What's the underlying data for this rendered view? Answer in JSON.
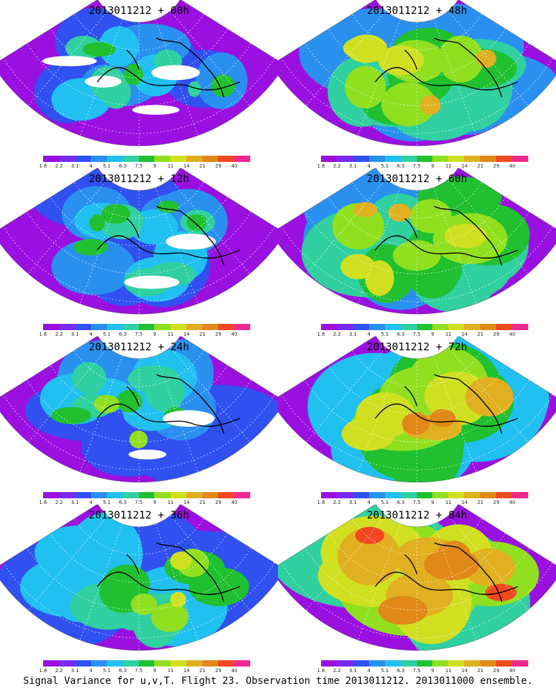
{
  "panels": [
    {
      "title": "2013011212 + 00h",
      "lead_hours": 0,
      "intensity": 0.2
    },
    {
      "title": "2013011212 + 48h",
      "lead_hours": 48,
      "intensity": 0.62
    },
    {
      "title": "2013011212 + 12h",
      "lead_hours": 12,
      "intensity": 0.3
    },
    {
      "title": "2013011212 + 60h",
      "lead_hours": 60,
      "intensity": 0.7
    },
    {
      "title": "2013011212 + 24h",
      "lead_hours": 24,
      "intensity": 0.4
    },
    {
      "title": "2013011212 + 72h",
      "lead_hours": 72,
      "intensity": 0.78
    },
    {
      "title": "2013011212 + 36h",
      "lead_hours": 36,
      "intensity": 0.5
    },
    {
      "title": "2013011212 + 84h",
      "lead_hours": 84,
      "intensity": 0.86
    }
  ],
  "colorbar": {
    "colors": [
      "#9a10e0",
      "#7a28f0",
      "#3050f0",
      "#2a90f0",
      "#20c0f0",
      "#30d0a0",
      "#20c030",
      "#90e020",
      "#d0e020",
      "#e0b020",
      "#e08818",
      "#f04820",
      "#f02890"
    ],
    "labels": [
      "1.6",
      "2.2",
      "3.1",
      "4",
      "5.1",
      "6.3",
      "7.5",
      "9",
      "11",
      "14",
      "21",
      "29",
      "40"
    ]
  },
  "caption": "Signal Variance for u,v,T. Flight 23. Observation time 2013011212. 2013011000 ensemble."
}
